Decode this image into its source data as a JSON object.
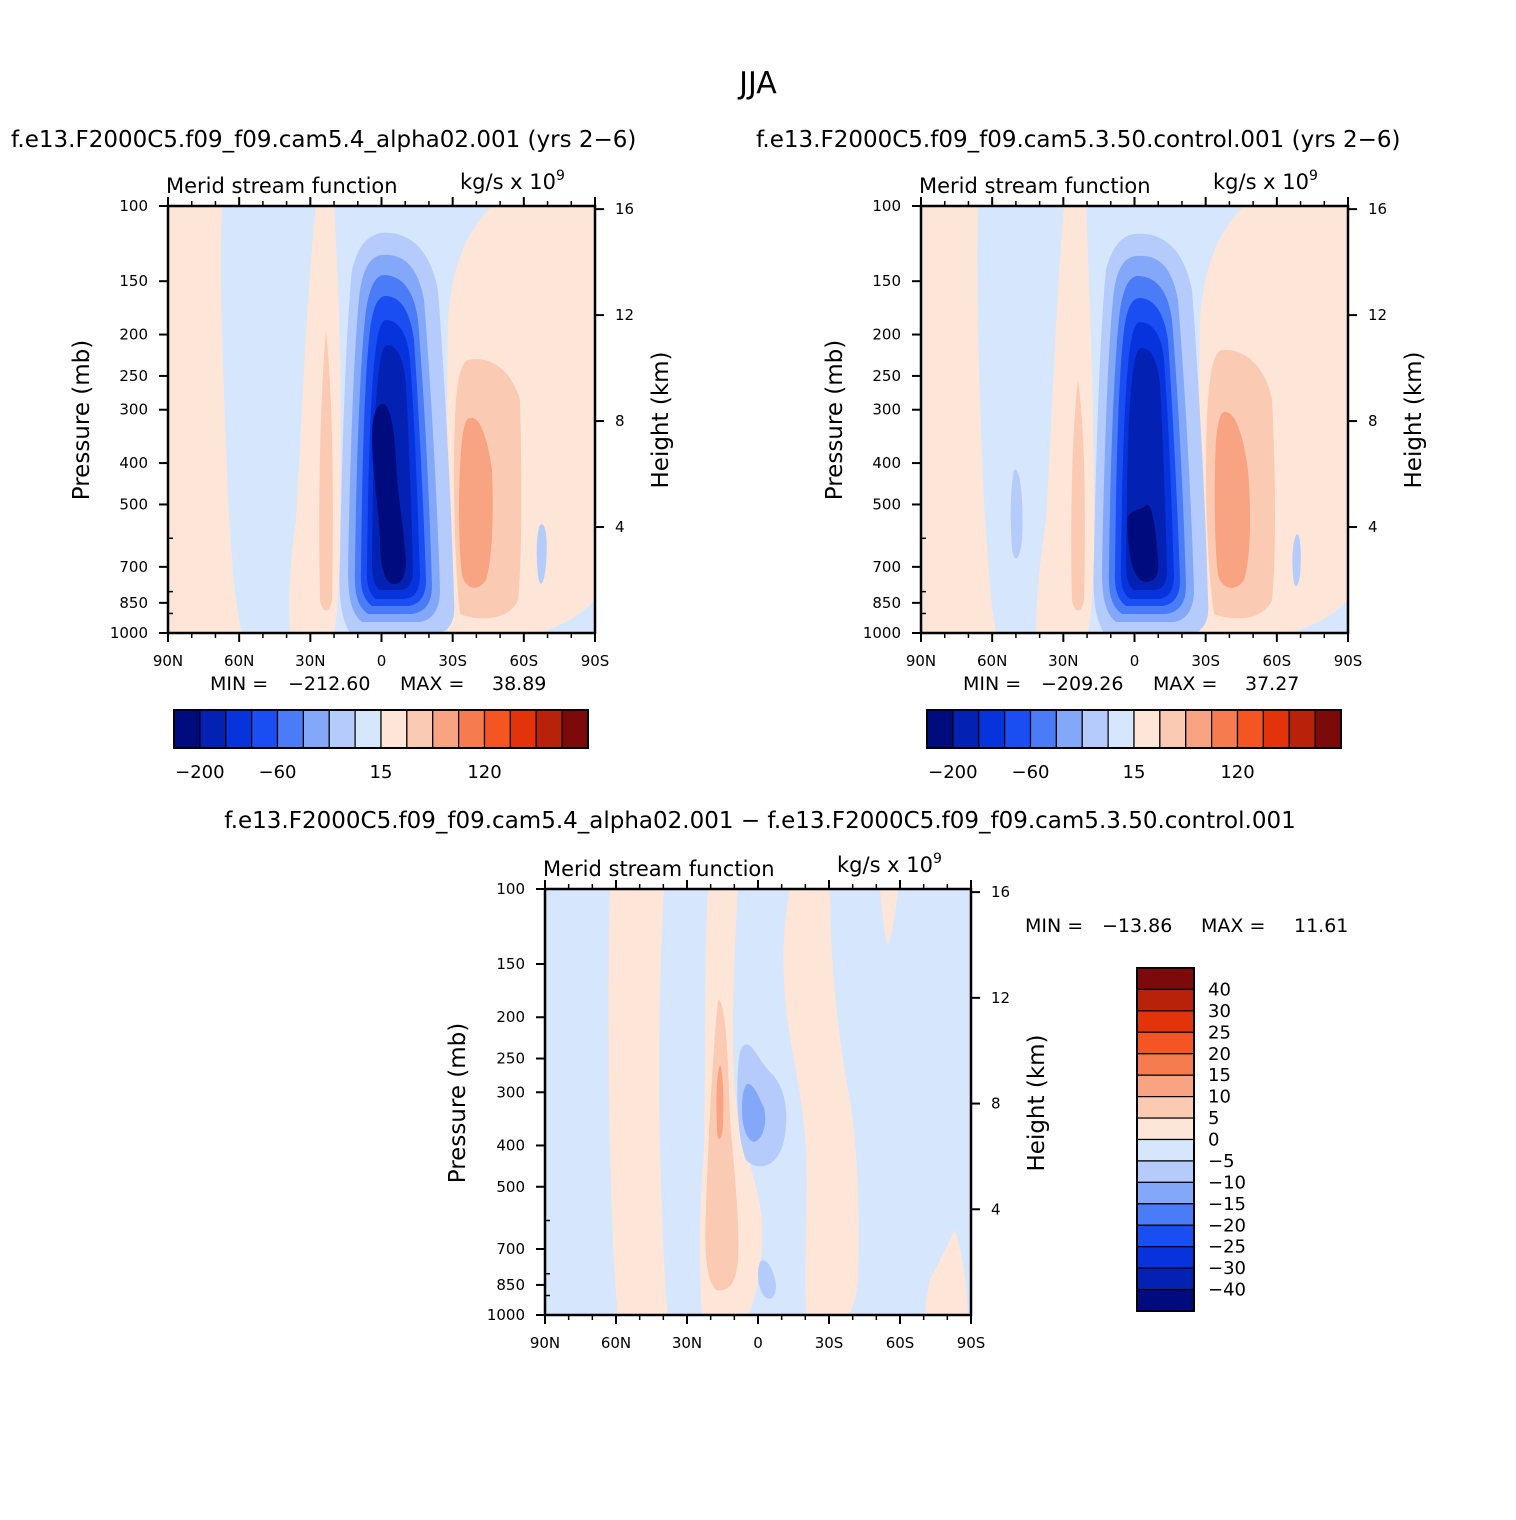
{
  "page": {
    "title": "JJA",
    "case_a": "f.e13.F2000C5.f09_f09.cam5.4_alpha02.001  (yrs  2−6)",
    "case_b": "f.e13.F2000C5.f09_f09.cam5.3.50.control.001  (yrs  2−6)",
    "diff_title": "f.e13.F2000C5.f09_f09.cam5.4_alpha02.001  −  f.e13.F2000C5.f09_f09.cam5.3.50.control.001"
  },
  "colors": {
    "panel_levels": [
      "#000c7e",
      "#0322b4",
      "#0733dd",
      "#1b4ef2",
      "#4a7cf7",
      "#84a8f9",
      "#b4cbfb",
      "#d6e6fc",
      "#fde6d8",
      "#fbcab3",
      "#f8a483",
      "#f67c50",
      "#f55423",
      "#e2330a",
      "#b8220a",
      "#7d0a0a"
    ],
    "diff_levels": [
      "#000c7e",
      "#0322b4",
      "#0733dd",
      "#1b4ef2",
      "#4a7cf7",
      "#84a8f9",
      "#b4cbfb",
      "#d6e6fc",
      "#fde6d8",
      "#fbcab3",
      "#f8a483",
      "#f67c50",
      "#f55423",
      "#e2330a",
      "#b8220a",
      "#7d0a0a"
    ]
  },
  "chart_data": [
    {
      "type": "contour",
      "id": "panel-a",
      "title": "Merid  stream  function",
      "units": "kg/s  x  10",
      "units_exp": "9",
      "xlabel": "",
      "ylabel": "Pressure  (mb)",
      "ylabel_right": "Height  (km)",
      "x_ticks": [
        "90N",
        "60N",
        "30N",
        "0",
        "30S",
        "60S",
        "90S"
      ],
      "xlim": [
        90,
        -90
      ],
      "y_ticks": [
        100,
        150,
        200,
        250,
        300,
        400,
        500,
        700,
        850,
        1000
      ],
      "ylim": [
        1000,
        100
      ],
      "height_ticks": [
        16,
        12,
        8,
        4
      ],
      "stats": {
        "min_label": "MIN  =",
        "min": "−212.60",
        "max_label": "MAX  =",
        "max": "38.89"
      },
      "colorbar": {
        "orientation": "horizontal",
        "tick_labels": [
          "−200",
          "−60",
          "15",
          "120"
        ],
        "tick_index": [
          1,
          4,
          8,
          12
        ]
      },
      "features": [
        {
          "lat": 0.5,
          "p_top": 180,
          "p_bottom": 960,
          "peak": -212.6
        },
        {
          "lat": -38,
          "p_top": 200,
          "p_bottom": 970,
          "peak": 38.89
        },
        {
          "lat": 23,
          "p_top": 100,
          "p_bottom": 950,
          "peak": 14
        },
        {
          "lat": 72,
          "p_top": 100,
          "p_bottom": 1000,
          "peak": 6
        }
      ]
    },
    {
      "type": "contour",
      "id": "panel-b",
      "title": "Merid  stream  function",
      "units": "kg/s  x  10",
      "units_exp": "9",
      "xlabel": "",
      "ylabel": "Pressure  (mb)",
      "ylabel_right": "Height  (km)",
      "x_ticks": [
        "90N",
        "60N",
        "30N",
        "0",
        "30S",
        "60S",
        "90S"
      ],
      "xlim": [
        90,
        -90
      ],
      "y_ticks": [
        100,
        150,
        200,
        250,
        300,
        400,
        500,
        700,
        850,
        1000
      ],
      "ylim": [
        1000,
        100
      ],
      "height_ticks": [
        16,
        12,
        8,
        4
      ],
      "stats": {
        "min_label": "MIN  =",
        "min": "−209.26",
        "max_label": "MAX  =",
        "max": "37.27"
      },
      "colorbar": {
        "orientation": "horizontal",
        "tick_labels": [
          "−200",
          "−60",
          "15",
          "120"
        ],
        "tick_index": [
          1,
          4,
          8,
          12
        ]
      },
      "features": [
        {
          "lat": 0.5,
          "p_top": 180,
          "p_bottom": 960,
          "peak": -209.26
        },
        {
          "lat": -38,
          "p_top": 200,
          "p_bottom": 970,
          "peak": 37.27
        },
        {
          "lat": 23,
          "p_top": 100,
          "p_bottom": 950,
          "peak": 14
        },
        {
          "lat": 72,
          "p_top": 100,
          "p_bottom": 1000,
          "peak": 6
        }
      ]
    },
    {
      "type": "contour",
      "id": "panel-diff",
      "title": "Merid  stream  function",
      "units": "kg/s  x  10",
      "units_exp": "9",
      "xlabel": "",
      "ylabel": "Pressure  (mb)",
      "ylabel_right": "Height  (km)",
      "x_ticks": [
        "90N",
        "60N",
        "30N",
        "0",
        "30S",
        "60S",
        "90S"
      ],
      "xlim": [
        90,
        -90
      ],
      "y_ticks": [
        100,
        150,
        200,
        250,
        300,
        400,
        500,
        700,
        850,
        1000
      ],
      "ylim": [
        1000,
        100
      ],
      "height_ticks": [
        16,
        12,
        8,
        4
      ],
      "stats": {
        "min_label": "MIN  =",
        "min": "−13.86",
        "max_label": "MAX  =",
        "max": "11.61"
      },
      "colorbar": {
        "orientation": "vertical",
        "tick_labels": [
          "40",
          "30",
          "25",
          "20",
          "15",
          "10",
          "5",
          "0",
          "−5",
          "−10",
          "−15",
          "−20",
          "−25",
          "−30",
          "−40"
        ]
      },
      "features": [
        {
          "lat": 15,
          "p_top": 170,
          "p_bottom": 880,
          "peak": 11.61
        },
        {
          "lat": -3,
          "p_top": 240,
          "p_bottom": 440,
          "peak": -13.86
        },
        {
          "lat": -4,
          "p_top": 760,
          "p_bottom": 900,
          "peak": -10
        },
        {
          "lat": 55,
          "p_top": 100,
          "p_bottom": 1000,
          "peak": 3
        },
        {
          "lat": -30,
          "p_top": 100,
          "p_bottom": 1000,
          "peak": 3
        }
      ]
    }
  ]
}
